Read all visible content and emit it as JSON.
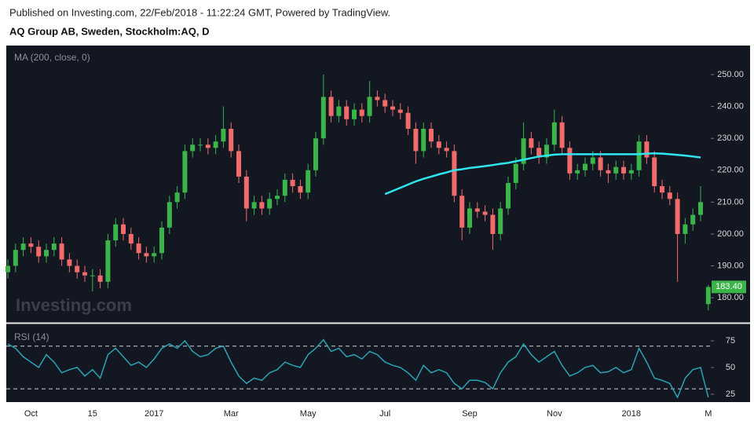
{
  "header": {
    "line1": "Published on Investing.com, 22/Feb/2018 - 11:22:24 GMT, Powered by TradingView.",
    "line2": "AQ Group AB, Sweden, Stockholm:AQ, D"
  },
  "chart_data": [
    {
      "type": "candlestick",
      "watermark": "Investing.com",
      "up_color": "#3bb54a",
      "down_color": "#f26b6b",
      "categories": [
        null,
        null,
        null,
        "Oct",
        null,
        null,
        null,
        null,
        null,
        null,
        null,
        "15",
        null,
        null,
        null,
        null,
        null,
        null,
        null,
        "2017",
        null,
        null,
        null,
        null,
        null,
        null,
        null,
        null,
        null,
        "Mar",
        null,
        null,
        null,
        null,
        null,
        null,
        null,
        null,
        null,
        "May",
        null,
        null,
        null,
        null,
        null,
        null,
        null,
        null,
        null,
        "Jul",
        null,
        null,
        null,
        null,
        null,
        null,
        null,
        null,
        null,
        null,
        "Sep",
        null,
        null,
        null,
        null,
        null,
        null,
        null,
        null,
        null,
        null,
        "Nov",
        null,
        null,
        null,
        null,
        null,
        null,
        null,
        null,
        null,
        "2018",
        null,
        null,
        null,
        null,
        null,
        null,
        null,
        null,
        null,
        "M"
      ],
      "open": [
        188,
        190,
        195,
        197,
        196,
        193,
        195,
        197,
        192,
        190,
        188,
        187,
        187,
        185,
        198,
        203,
        200,
        197,
        194,
        193,
        194,
        202,
        210,
        213,
        226,
        228,
        228,
        227,
        229,
        233,
        226,
        218,
        208,
        210,
        208,
        211,
        212,
        217,
        215,
        213,
        220,
        230,
        243,
        237,
        240,
        236,
        239,
        237,
        243,
        242,
        240,
        239,
        238,
        233,
        226,
        233,
        229,
        227,
        226,
        212,
        202,
        208,
        207,
        206,
        200,
        208,
        216,
        222,
        230,
        227,
        224,
        228,
        235,
        227,
        219,
        220,
        222,
        224,
        220,
        219,
        221,
        219,
        220,
        229,
        224,
        215,
        213,
        211,
        200,
        203,
        206,
        178
      ],
      "high": [
        192,
        197,
        199,
        199,
        198,
        197,
        199,
        199,
        194,
        192,
        190,
        189,
        189,
        200,
        205,
        205,
        202,
        199,
        196,
        196,
        204,
        212,
        215,
        228,
        230,
        230,
        230,
        231,
        240,
        235,
        228,
        220,
        212,
        212,
        213,
        214,
        219,
        219,
        217,
        222,
        232,
        250,
        245,
        242,
        242,
        241,
        241,
        248,
        245,
        244,
        242,
        241,
        240,
        235,
        235,
        235,
        231,
        229,
        228,
        214,
        210,
        210,
        209,
        208,
        210,
        218,
        224,
        235,
        232,
        229,
        230,
        239,
        237,
        229,
        222,
        224,
        226,
        226,
        222,
        223,
        223,
        222,
        231,
        231,
        226,
        217,
        215,
        213,
        205,
        208,
        215,
        184
      ],
      "low": [
        186,
        188,
        193,
        194,
        191,
        191,
        193,
        190,
        188,
        186,
        185,
        182,
        183,
        183,
        196,
        198,
        195,
        192,
        191,
        191,
        192,
        200,
        208,
        211,
        224,
        226,
        225,
        225,
        227,
        224,
        216,
        204,
        206,
        206,
        206,
        209,
        210,
        213,
        211,
        211,
        218,
        228,
        235,
        235,
        234,
        234,
        235,
        235,
        240,
        238,
        237,
        236,
        231,
        222,
        224,
        227,
        225,
        224,
        210,
        198,
        200,
        205,
        204,
        195,
        198,
        206,
        214,
        220,
        225,
        222,
        222,
        226,
        225,
        217,
        217,
        218,
        220,
        218,
        216,
        217,
        217,
        217,
        218,
        222,
        213,
        211,
        209,
        185,
        197,
        201,
        204,
        176
      ],
      "close": [
        190,
        195,
        197,
        196,
        193,
        195,
        197,
        192,
        190,
        188,
        187,
        187,
        185,
        198,
        203,
        200,
        197,
        194,
        193,
        194,
        202,
        210,
        213,
        226,
        228,
        228,
        227,
        229,
        233,
        226,
        218,
        208,
        210,
        208,
        211,
        212,
        217,
        215,
        213,
        220,
        230,
        243,
        237,
        240,
        236,
        239,
        237,
        243,
        242,
        240,
        239,
        238,
        233,
        226,
        233,
        229,
        227,
        226,
        212,
        202,
        208,
        207,
        206,
        200,
        208,
        216,
        222,
        230,
        227,
        224,
        228,
        235,
        227,
        219,
        220,
        222,
        224,
        220,
        219,
        221,
        219,
        220,
        229,
        224,
        215,
        213,
        211,
        200,
        203,
        206,
        210,
        183.4
      ],
      "series": [
        {
          "name": "MA (200, close, 0)",
          "color": "#2ee6f0",
          "values": [
            null,
            null,
            null,
            null,
            null,
            null,
            null,
            null,
            null,
            null,
            null,
            null,
            null,
            null,
            null,
            null,
            null,
            null,
            null,
            null,
            null,
            null,
            null,
            null,
            null,
            null,
            null,
            null,
            null,
            null,
            null,
            null,
            null,
            null,
            null,
            null,
            null,
            null,
            null,
            null,
            null,
            null,
            null,
            null,
            null,
            null,
            null,
            null,
            null,
            212.5,
            213.5,
            214.5,
            215.5,
            216.5,
            217.3,
            218,
            218.7,
            219.3,
            220,
            220.3,
            220.7,
            221,
            221.3,
            221.6,
            222,
            222.3,
            222.8,
            223.3,
            223.8,
            224.3,
            224.6,
            224.9,
            225,
            225,
            225,
            225,
            225,
            225,
            225,
            225,
            225,
            225,
            225,
            225.2,
            225.3,
            225.2,
            225,
            224.8,
            224.6,
            224.3,
            224,
            null
          ]
        }
      ],
      "last_price": {
        "value": 183.4,
        "label": "183.40"
      },
      "ylim": [
        172.4,
        259.1
      ],
      "yticks": [
        {
          "value": 180,
          "label": "180.00"
        },
        {
          "value": 190,
          "label": "190.00"
        },
        {
          "value": 200,
          "label": "200.00"
        },
        {
          "value": 210,
          "label": "210.00"
        },
        {
          "value": 220,
          "label": "220.00"
        },
        {
          "value": 230,
          "label": "230.00"
        },
        {
          "value": 240,
          "label": "240.00"
        },
        {
          "value": 250,
          "label": "250.00"
        }
      ]
    },
    {
      "type": "line",
      "series": [
        {
          "name": "RSI (14)",
          "color": "#2aa3b3",
          "values": [
            72,
            68,
            60,
            55,
            50,
            62,
            55,
            45,
            48,
            50,
            42,
            48,
            40,
            62,
            68,
            60,
            52,
            55,
            50,
            58,
            68,
            72,
            68,
            75,
            65,
            60,
            62,
            68,
            70,
            55,
            42,
            35,
            40,
            38,
            45,
            48,
            55,
            52,
            50,
            62,
            68,
            76,
            65,
            68,
            60,
            62,
            58,
            65,
            62,
            55,
            52,
            50,
            45,
            38,
            52,
            45,
            48,
            45,
            35,
            30,
            38,
            38,
            36,
            30,
            45,
            55,
            60,
            72,
            62,
            55,
            60,
            65,
            52,
            42,
            45,
            50,
            52,
            45,
            46,
            50,
            45,
            48,
            68,
            55,
            40,
            38,
            35,
            22,
            40,
            48,
            50,
            22
          ]
        }
      ],
      "levels": [
        70,
        30
      ],
      "ylim": [
        17.6,
        90.4
      ],
      "yticks": [
        25,
        50,
        75
      ]
    }
  ]
}
